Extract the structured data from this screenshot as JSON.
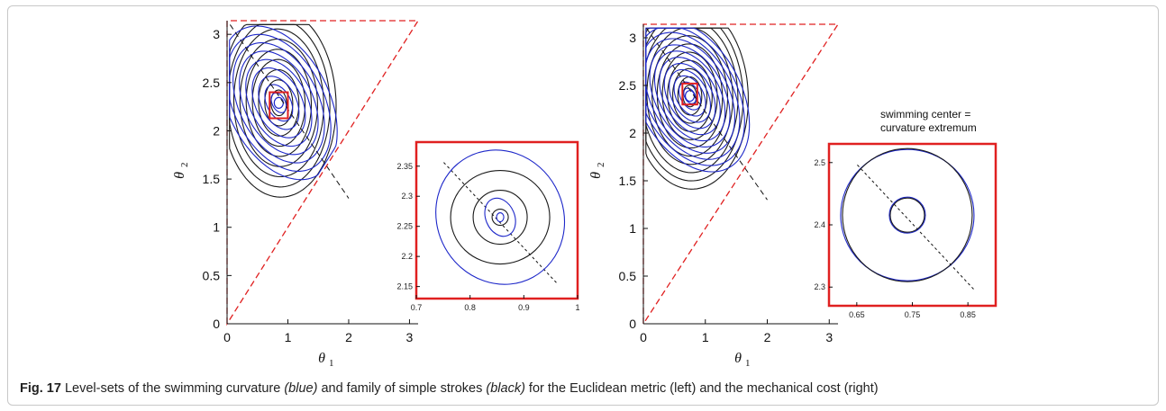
{
  "caption": {
    "label": "Fig. 17",
    "text_1": " Level-sets of the swimming curvature ",
    "emph_1": "(blue)",
    "text_2": " and family of simple strokes ",
    "emph_2": "(black)",
    "text_3": " for the Euclidean metric (left) and the mechanical cost (right)"
  },
  "colors": {
    "blue": "#1d27c9",
    "black": "#1a1a1a",
    "red": "#e02020",
    "dashed": "#111111"
  },
  "chart_data": [
    {
      "type": "contour",
      "panel": "left",
      "xlabel": "θ1",
      "ylabel": "θ2",
      "xlim": [
        0,
        3.14159
      ],
      "ylim": [
        0,
        3.14159
      ],
      "xticks": [
        "0",
        "1",
        "2",
        "3"
      ],
      "yticks": [
        "0",
        "0.5",
        "1",
        "1.5",
        "2",
        "2.5",
        "3"
      ],
      "center": [
        0.85,
        2.29
      ],
      "blue_curves": 9,
      "black_curves": 9,
      "zoom_box": [
        [
          0.7,
          1.0
        ],
        [
          2.13,
          2.4
        ]
      ],
      "inset": {
        "xticks": [
          "0.7",
          "0.8",
          "0.9",
          "1"
        ],
        "yticks": [
          "2.15",
          "2.2",
          "2.25",
          "2.3",
          "2.35"
        ],
        "xlim": [
          0.7,
          1.0
        ],
        "ylim": [
          2.13,
          2.39
        ]
      }
    },
    {
      "type": "contour",
      "panel": "right",
      "xlabel": "θ1",
      "ylabel": "θ2",
      "xlim": [
        0,
        3.14159
      ],
      "ylim": [
        0,
        3.14159
      ],
      "xticks": [
        "0",
        "1",
        "2",
        "3"
      ],
      "yticks": [
        "0",
        "0.5",
        "1",
        "1.5",
        "2",
        "2.5",
        "3"
      ],
      "center": [
        0.75,
        2.39
      ],
      "blue_curves": 12,
      "black_curves": 11,
      "zoom_box": [
        [
          0.63,
          0.87
        ],
        [
          2.3,
          2.52
        ]
      ],
      "annotation": [
        "swimming center =",
        "curvature extremum"
      ],
      "inset": {
        "xticks": [
          "0.65",
          "0.75",
          "0.85"
        ],
        "yticks": [
          "2.3",
          "2.4",
          "2.5"
        ],
        "xlim": [
          0.6,
          0.9
        ],
        "ylim": [
          2.27,
          2.53
        ]
      }
    }
  ]
}
